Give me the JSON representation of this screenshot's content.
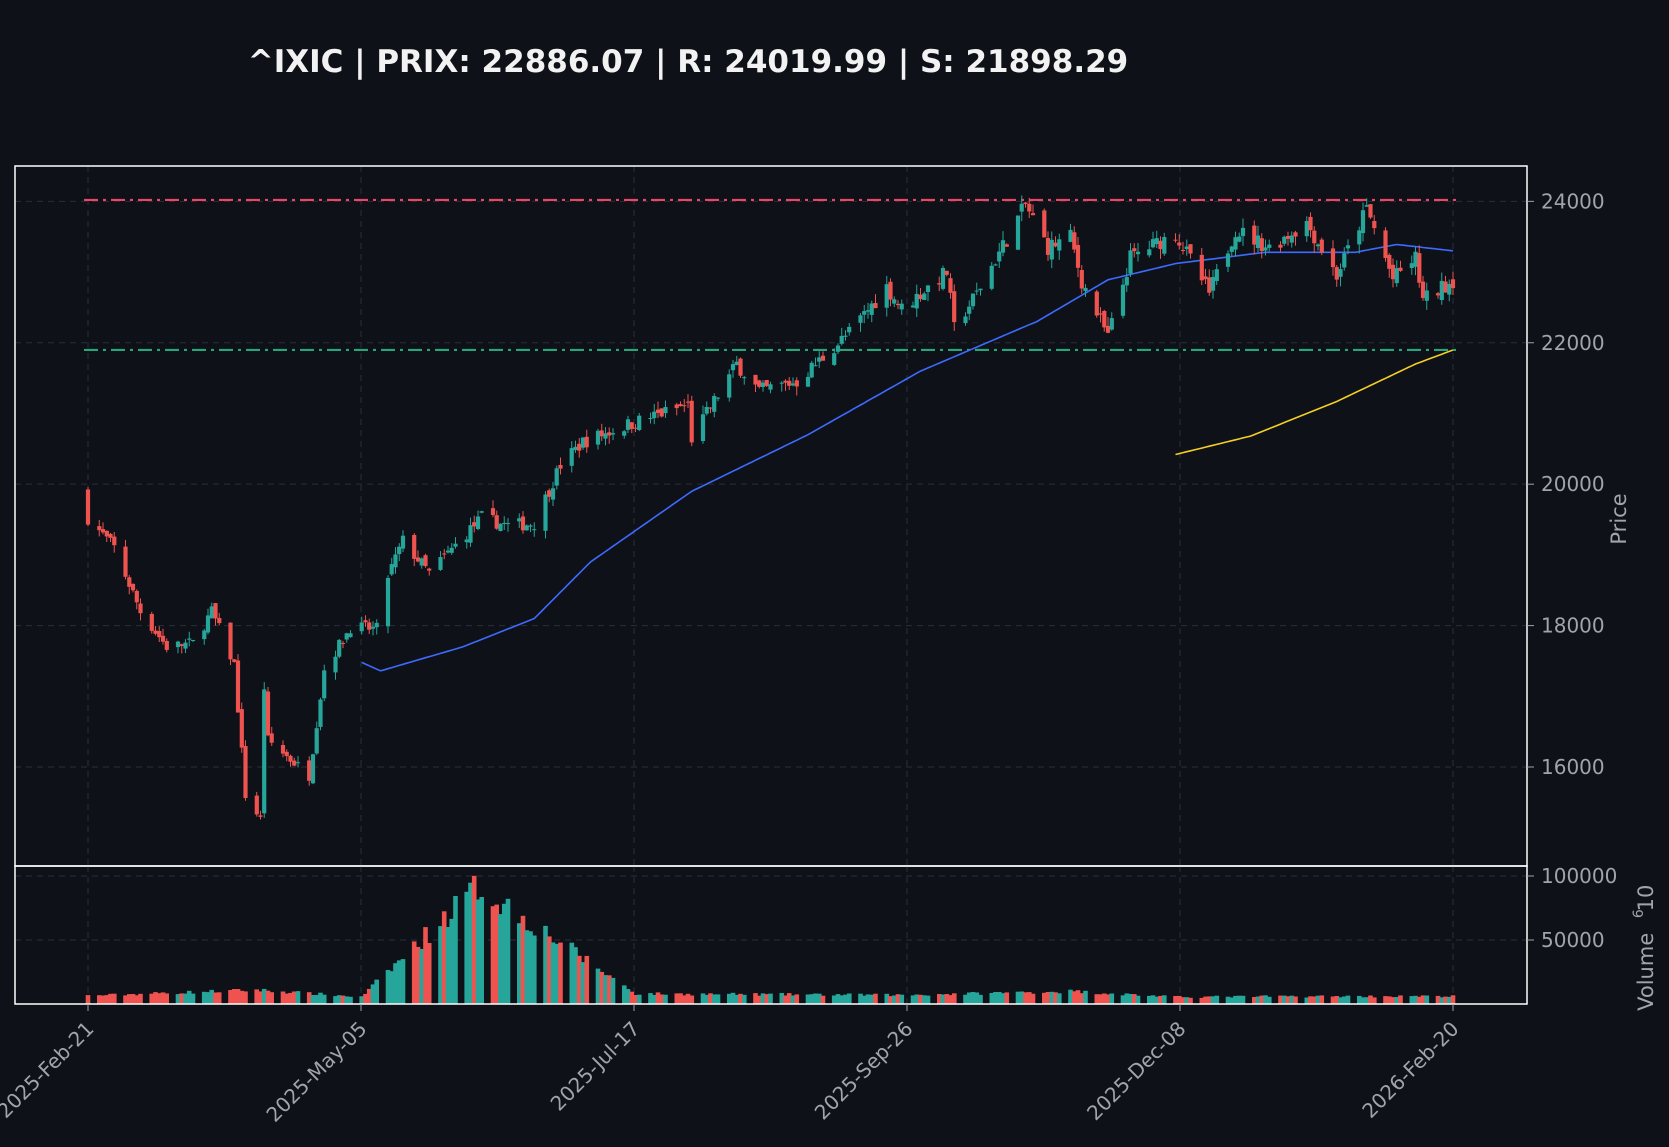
{
  "chart_data": {
    "type": "candlestick",
    "title": "^IXIC | PRIX: 22886.07 | R: 24019.99 | S: 21898.29",
    "price": 22886.07,
    "resistance": 24019.99,
    "support": 21898.29,
    "ylabel_price": "Price",
    "ylabel_volume": "Volume",
    "volume_scale_exponent": "6",
    "price_ylim": [
      14600,
      24500
    ],
    "volume_ylim": [
      0,
      100000
    ],
    "price_yticks": [
      "16000",
      "18000",
      "20000",
      "22000",
      "24000"
    ],
    "volume_yticks": [
      "50000",
      "100000"
    ],
    "xlabels": [
      "2025-Feb-21",
      "2025-May-05",
      "2025-Jul-17",
      "2025-Sep-26",
      "2025-Dec-08",
      "2026-Feb-20"
    ],
    "date_range": [
      "2025-02-21",
      "2026-02-20"
    ],
    "grid": true,
    "colors": {
      "background": "#0e1117",
      "up": "#26a69a",
      "down": "#ef5350",
      "resistance": "#ef4466",
      "support": "#26a67a",
      "sma50": "#3d6bff",
      "sma200": "#f5d023",
      "text": "#f2f2f2",
      "tick": "#a0a4ab",
      "grid": "#2a2e38",
      "frame": "#ffffff"
    },
    "close_anchors": [
      [
        "2025-02-21",
        19525
      ],
      [
        "2025-02-28",
        19100
      ],
      [
        "2025-03-07",
        18200
      ],
      [
        "2025-03-14",
        17700
      ],
      [
        "2025-03-21",
        17750
      ],
      [
        "2025-03-26",
        18200
      ],
      [
        "2025-04-01",
        17450
      ],
      [
        "2025-04-04",
        15600
      ],
      [
        "2025-04-08",
        15260
      ],
      [
        "2025-04-09",
        17130
      ],
      [
        "2025-04-10",
        16380
      ],
      [
        "2025-04-21",
        15880
      ],
      [
        "2025-04-25",
        17380
      ],
      [
        "2025-05-02",
        17980
      ],
      [
        "2025-05-09",
        17950
      ],
      [
        "2025-05-12",
        18700
      ],
      [
        "2025-05-16",
        19200
      ],
      [
        "2025-05-23",
        18740
      ],
      [
        "2025-06-06",
        19530
      ],
      [
        "2025-06-13",
        19410
      ],
      [
        "2025-06-20",
        19450
      ],
      [
        "2025-06-27",
        20270
      ],
      [
        "2025-07-03",
        20600
      ],
      [
        "2025-07-17",
        20880
      ],
      [
        "2025-07-31",
        21120
      ],
      [
        "2025-08-01",
        20650
      ],
      [
        "2025-08-13",
        21700
      ],
      [
        "2025-08-19",
        21320
      ],
      [
        "2025-08-29",
        21450
      ],
      [
        "2025-09-12",
        22140
      ],
      [
        "2025-09-22",
        22790
      ],
      [
        "2025-09-26",
        22480
      ],
      [
        "2025-10-08",
        23000
      ],
      [
        "2025-10-10",
        22200
      ],
      [
        "2025-10-16",
        22700
      ],
      [
        "2025-10-29",
        23950
      ],
      [
        "2025-11-04",
        23350
      ],
      [
        "2025-11-10",
        23500
      ],
      [
        "2025-11-13",
        22870
      ],
      [
        "2025-11-20",
        22080
      ],
      [
        "2025-11-26",
        23210
      ],
      [
        "2025-12-08",
        23550
      ],
      [
        "2025-12-17",
        22700
      ],
      [
        "2025-12-24",
        23600
      ],
      [
        "2026-01-02",
        23350
      ],
      [
        "2026-01-12",
        23700
      ],
      [
        "2026-01-20",
        22950
      ],
      [
        "2026-01-28",
        23900
      ],
      [
        "2026-02-04",
        22900
      ],
      [
        "2026-02-10",
        23200
      ],
      [
        "2026-02-12",
        22600
      ],
      [
        "2026-02-20",
        22886
      ]
    ],
    "volume_anchors": [
      [
        "2025-02-21",
        6500
      ],
      [
        "2025-04-07",
        11000
      ],
      [
        "2025-05-05",
        5500
      ],
      [
        "2025-06-05",
        92000
      ],
      [
        "2025-07-17",
        8000
      ],
      [
        "2025-09-26",
        7000
      ],
      [
        "2025-11-10",
        10000
      ],
      [
        "2025-12-08",
        5500
      ],
      [
        "2026-01-05",
        6000
      ],
      [
        "2026-02-20",
        6000
      ]
    ],
    "sma50_anchors": [
      [
        "2025-05-05",
        17480
      ],
      [
        "2025-05-10",
        17360
      ],
      [
        "2025-06-01",
        17700
      ],
      [
        "2025-06-20",
        18100
      ],
      [
        "2025-07-05",
        18900
      ],
      [
        "2025-08-01",
        19900
      ],
      [
        "2025-09-01",
        20700
      ],
      [
        "2025-10-01",
        21600
      ],
      [
        "2025-11-01",
        22300
      ],
      [
        "2025-11-20",
        22890
      ],
      [
        "2025-12-08",
        23120
      ],
      [
        "2026-01-01",
        23280
      ],
      [
        "2026-01-25",
        23280
      ],
      [
        "2026-02-05",
        23390
      ],
      [
        "2026-02-20",
        23300
      ]
    ],
    "sma200_anchors": [
      [
        "2025-12-08",
        20420
      ],
      [
        "2025-12-28",
        20680
      ],
      [
        "2026-01-20",
        21170
      ],
      [
        "2026-02-10",
        21700
      ],
      [
        "2026-02-20",
        21898
      ]
    ]
  }
}
